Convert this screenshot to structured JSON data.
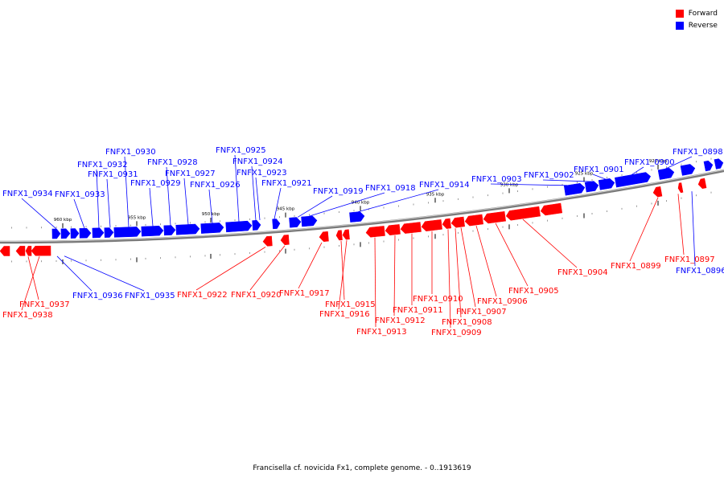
{
  "legend": [
    {
      "label": "Forward",
      "color": "#ff0000"
    },
    {
      "label": "Reverse",
      "color": "#0000ff"
    }
  ],
  "colors": {
    "forward": "#ff0000",
    "reverse": "#0000ff",
    "backbone": "#888888"
  },
  "caption": "Francisella cf. novicida Fx1, complete genome. - 0..1913619",
  "ticks": [
    "960 kbp",
    "955 kbp",
    "950 kbp",
    "945 kbp",
    "940 kbp",
    "935 kbp",
    "930 kbp",
    "925 kbp",
    "920 kbp"
  ],
  "genes_forward": [
    "FNFX1_0937",
    "FNFX1_0938",
    "FNFX1_0922",
    "FNFX1_0920",
    "FNFX1_0917",
    "FNFX1_0915",
    "FNFX1_0916",
    "FNFX1_0913",
    "FNFX1_0912",
    "FNFX1_0911",
    "FNFX1_0910",
    "FNFX1_0909",
    "FNFX1_0908",
    "FNFX1_0907",
    "FNFX1_0906",
    "FNFX1_0905",
    "FNFX1_0904",
    "FNFX1_0899",
    "FNFX1_0897"
  ],
  "genes_reverse": [
    "FNFX1_0934",
    "FNFX1_0933",
    "FNFX1_0932",
    "FNFX1_0931",
    "FNFX1_0930",
    "FNFX1_0929",
    "FNFX1_0928",
    "FNFX1_0927",
    "FNFX1_0926",
    "FNFX1_0925",
    "FNFX1_0924",
    "FNFX1_0923",
    "FNFX1_0921",
    "FNFX1_0919",
    "FNFX1_0918",
    "FNFX1_0914",
    "FNFX1_0903",
    "FNFX1_0902",
    "FNFX1_0901",
    "FNFX1_0900",
    "FNFX1_0898",
    "FNFX1_0936",
    "FNFX1_0935",
    "FNFX1_0896"
  ]
}
